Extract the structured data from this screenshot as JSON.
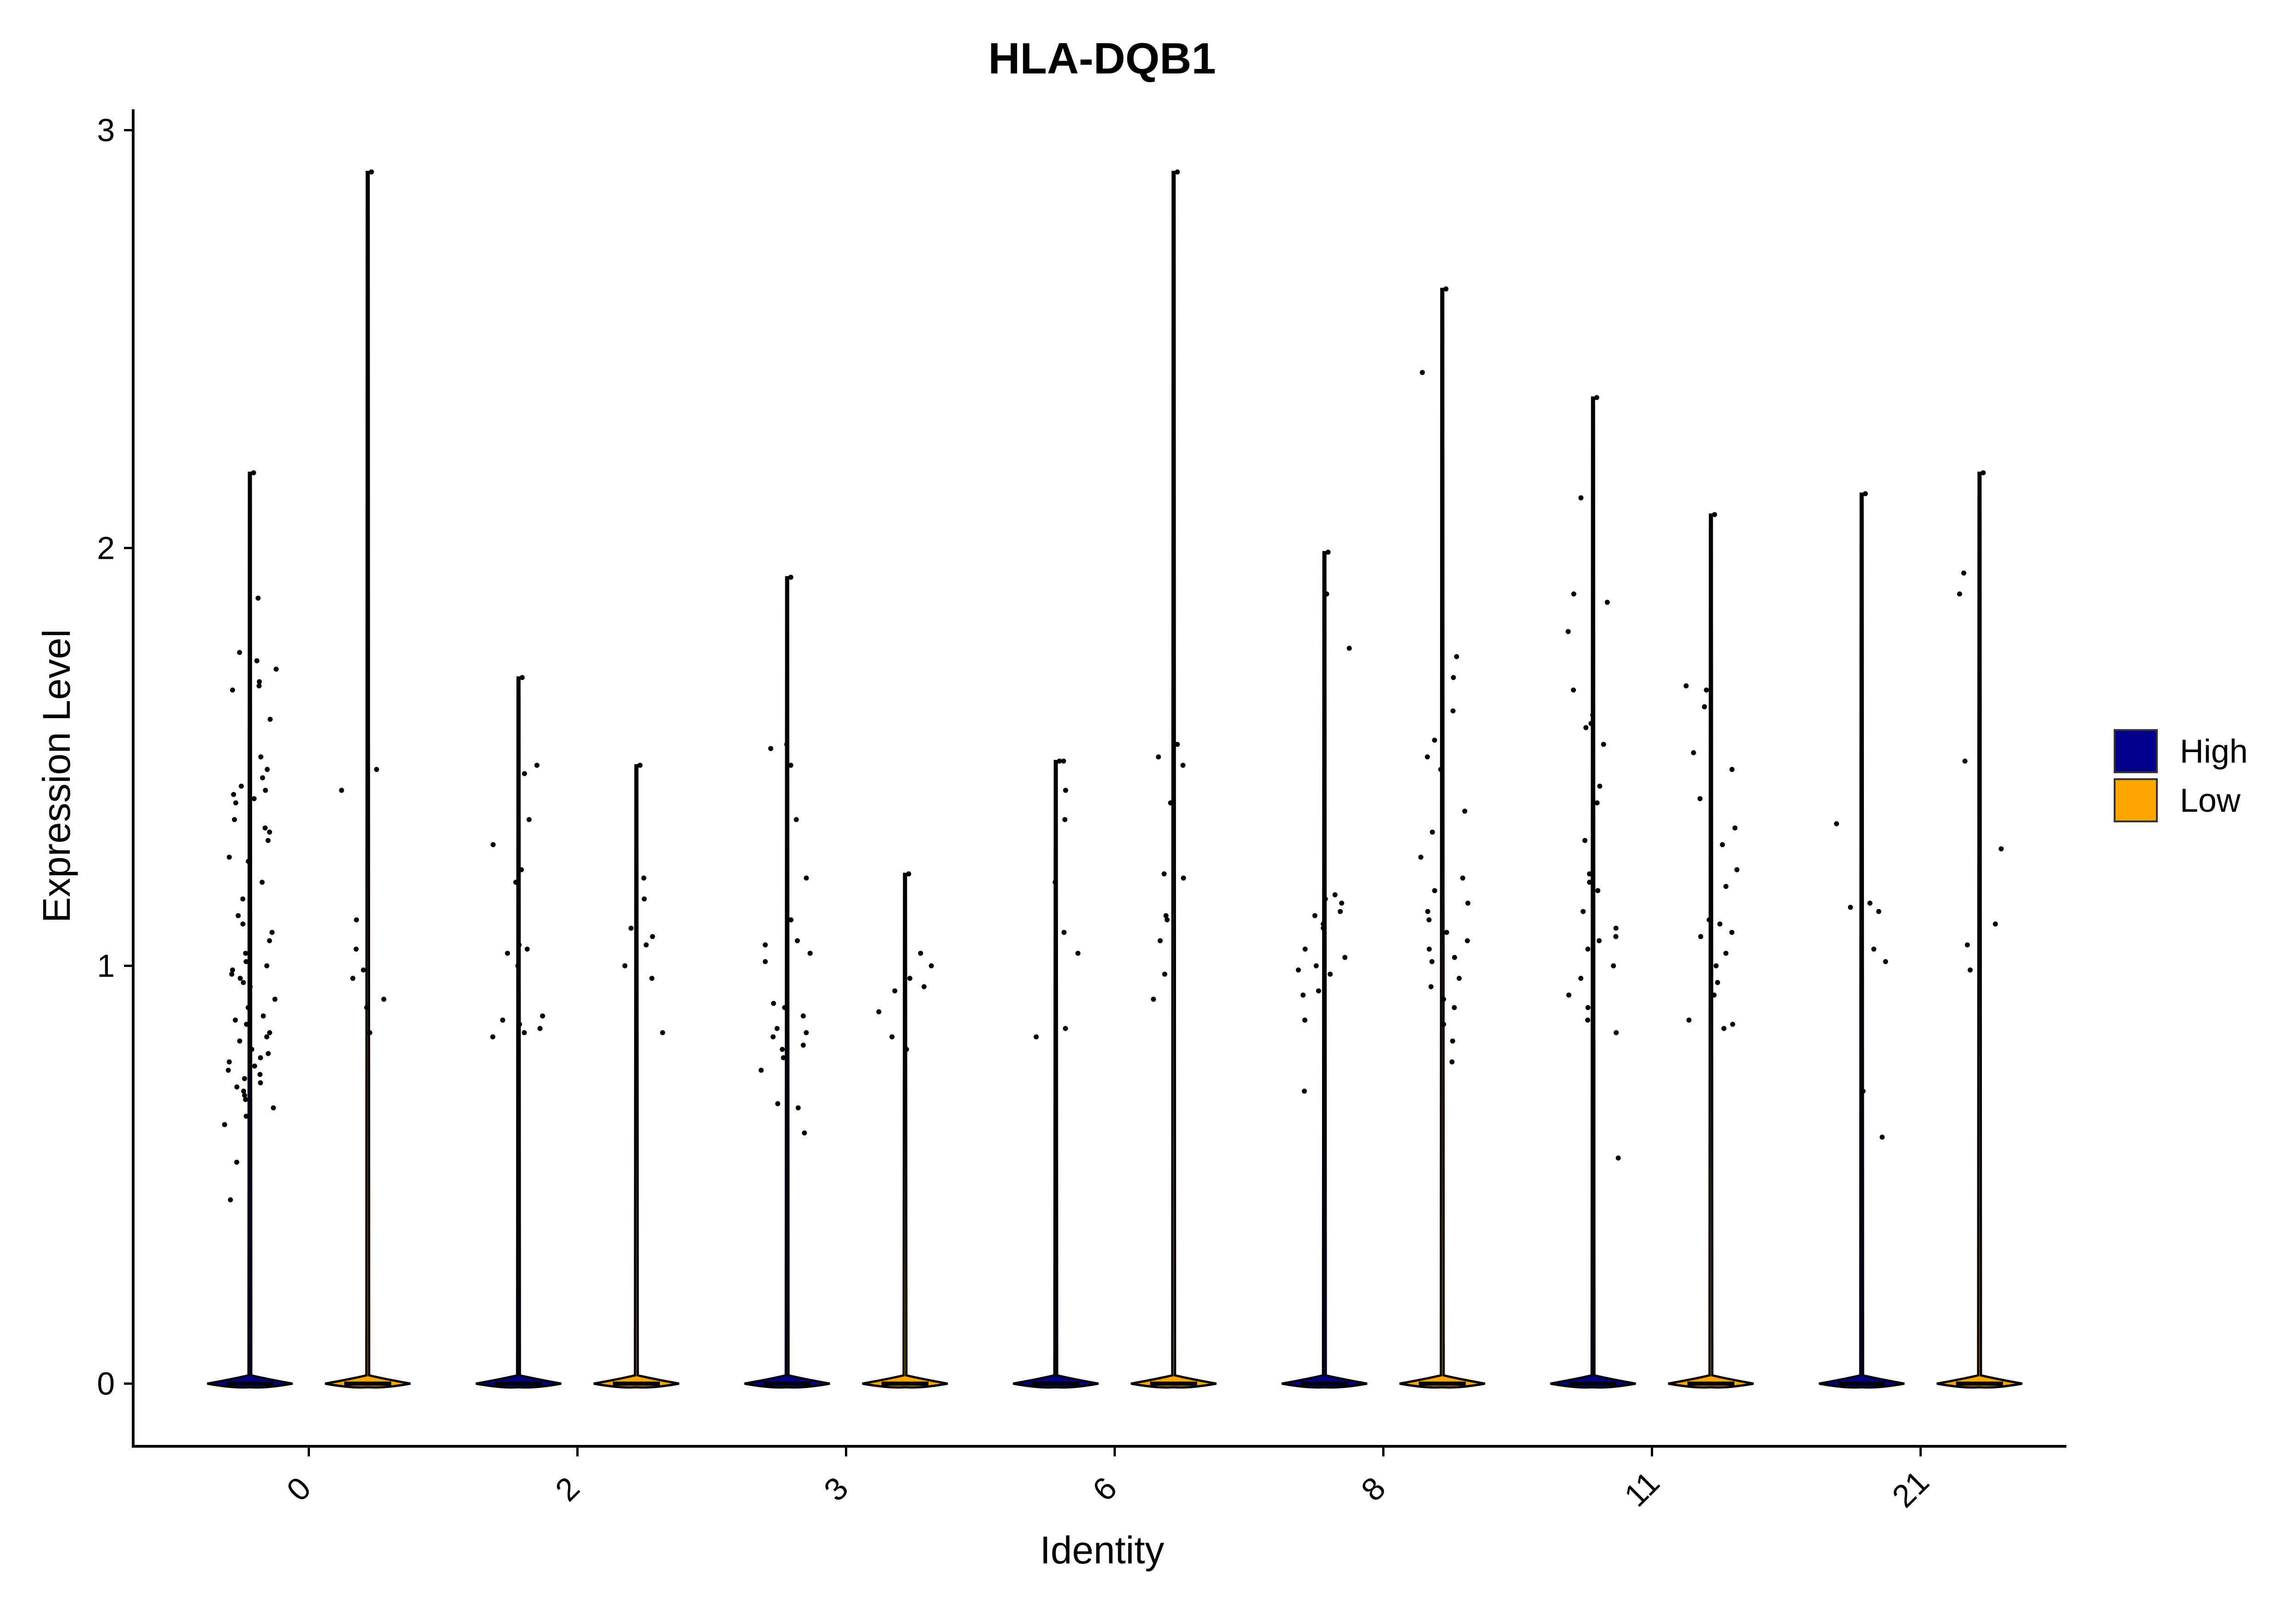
{
  "chart_data": {
    "type": "violin",
    "title": "HLA-DQB1",
    "xlabel": "Identity",
    "ylabel": "Expression Level",
    "ylim": [
      -0.15,
      3.05
    ],
    "yticks": [
      "0",
      "1",
      "2",
      "3"
    ],
    "categories": [
      "0",
      "2",
      "3",
      "6",
      "8",
      "11",
      "21"
    ],
    "legend": {
      "position": "right",
      "entries": [
        {
          "name": "High",
          "color": "#00008B"
        },
        {
          "name": "Low",
          "color": "#FFA500"
        }
      ]
    },
    "series": [
      {
        "name": "High",
        "color": "#00008B",
        "max": [
          2.18,
          1.69,
          1.93,
          1.49,
          1.99,
          2.36,
          2.13
        ]
      },
      {
        "name": "Low",
        "color": "#FFA500",
        "max": [
          2.9,
          1.48,
          1.22,
          2.9,
          2.62,
          2.08,
          2.18
        ]
      }
    ],
    "points": [
      {
        "cat": 0,
        "grp": "High",
        "y": [
          2.18,
          1.88,
          1.75,
          1.73,
          1.71,
          1.68,
          1.67,
          1.66,
          1.59,
          1.5,
          1.47,
          1.45,
          1.43,
          1.42,
          1.41,
          1.4,
          1.39,
          1.35,
          1.33,
          1.32,
          1.3,
          1.26,
          1.25,
          1.2,
          1.16,
          1.12,
          1.1,
          1.08,
          1.06,
          1.03,
          1.01,
          1.0,
          0.99,
          0.98,
          0.97,
          0.96,
          0.95,
          0.92,
          0.9,
          0.88,
          0.87,
          0.86,
          0.84,
          0.83,
          0.82,
          0.8,
          0.79,
          0.78,
          0.77,
          0.76,
          0.75,
          0.74,
          0.73,
          0.72,
          0.71,
          0.7,
          0.69,
          0.68,
          0.66,
          0.64,
          0.62,
          0.53,
          0.44
        ]
      },
      {
        "cat": 0,
        "grp": "Low",
        "y": [
          2.9,
          1.47,
          1.42,
          1.11,
          1.04,
          0.99,
          0.97,
          0.92,
          0.9,
          0.84
        ]
      },
      {
        "cat": 1,
        "grp": "High",
        "y": [
          1.69,
          1.48,
          1.46,
          1.35,
          1.29,
          1.23,
          1.2,
          1.05,
          1.04,
          1.03,
          1.0,
          0.88,
          0.87,
          0.86,
          0.85,
          0.84,
          0.83
        ]
      },
      {
        "cat": 1,
        "grp": "Low",
        "y": [
          1.48,
          1.21,
          1.16,
          1.09,
          1.07,
          1.05,
          1.0,
          0.97,
          0.84
        ]
      },
      {
        "cat": 2,
        "grp": "High",
        "y": [
          1.93,
          1.53,
          1.52,
          1.48,
          1.35,
          1.21,
          1.11,
          1.06,
          1.05,
          1.03,
          1.01,
          0.91,
          0.9,
          0.88,
          0.85,
          0.84,
          0.83,
          0.81,
          0.8,
          0.78,
          0.75,
          0.67,
          0.66,
          0.6
        ]
      },
      {
        "cat": 2,
        "grp": "Low",
        "y": [
          1.22,
          1.03,
          1.0,
          0.97,
          0.95,
          0.94,
          0.89,
          0.83,
          0.8
        ]
      },
      {
        "cat": 3,
        "grp": "High",
        "y": [
          1.49,
          1.49,
          1.42,
          1.35,
          1.2,
          1.08,
          1.03,
          0.85,
          0.83
        ]
      },
      {
        "cat": 3,
        "grp": "Low",
        "y": [
          2.9,
          1.53,
          1.5,
          1.48,
          1.39,
          1.22,
          1.21,
          1.12,
          1.11,
          1.06,
          0.98,
          0.92
        ]
      },
      {
        "cat": 4,
        "grp": "High",
        "y": [
          1.99,
          1.89,
          1.76,
          1.17,
          1.16,
          1.15,
          1.13,
          1.12,
          1.1,
          1.09,
          1.04,
          1.02,
          1.0,
          0.99,
          0.98,
          0.94,
          0.93,
          0.87,
          0.7
        ]
      },
      {
        "cat": 4,
        "grp": "Low",
        "y": [
          2.62,
          2.42,
          1.74,
          1.69,
          1.61,
          1.54,
          1.5,
          1.47,
          1.37,
          1.32,
          1.26,
          1.21,
          1.18,
          1.15,
          1.13,
          1.11,
          1.08,
          1.06,
          1.04,
          1.02,
          1.01,
          0.97,
          0.95,
          0.92,
          0.9,
          0.86,
          0.82,
          0.77
        ]
      },
      {
        "cat": 5,
        "grp": "High",
        "y": [
          2.36,
          2.12,
          1.89,
          1.87,
          1.8,
          1.66,
          1.6,
          1.58,
          1.57,
          1.53,
          1.43,
          1.39,
          1.3,
          1.22,
          1.2,
          1.18,
          1.13,
          1.09,
          1.07,
          1.06,
          1.04,
          1.0,
          0.97,
          0.93,
          0.9,
          0.87,
          0.84,
          0.54
        ]
      },
      {
        "cat": 5,
        "grp": "Low",
        "y": [
          2.08,
          1.67,
          1.66,
          1.62,
          1.51,
          1.47,
          1.4,
          1.33,
          1.29,
          1.23,
          1.19,
          1.11,
          1.1,
          1.08,
          1.07,
          1.03,
          1.0,
          0.96,
          0.93,
          0.87,
          0.86,
          0.85
        ]
      },
      {
        "cat": 6,
        "grp": "High",
        "y": [
          2.13,
          1.34,
          1.15,
          1.14,
          1.13,
          1.04,
          1.01,
          0.7,
          0.59
        ]
      },
      {
        "cat": 6,
        "grp": "Low",
        "y": [
          2.18,
          1.94,
          1.89,
          1.49,
          1.28,
          1.1,
          1.05,
          0.99
        ]
      }
    ]
  }
}
